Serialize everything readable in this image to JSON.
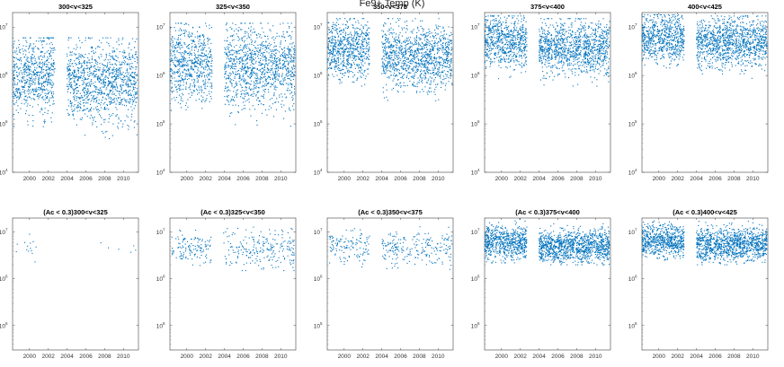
{
  "figure_title": "Fe9+ Temp (K)",
  "chart_data": [
    {
      "type": "scatter",
      "title": "300<v<325",
      "yscale": "log",
      "ylim": [
        10000,
        20000000
      ],
      "xlim": [
        1998.2,
        2011.6
      ],
      "x_ticks": [
        2000,
        2002,
        2004,
        2006,
        2008,
        2010
      ],
      "y_ticks": [
        4,
        5,
        6,
        7
      ],
      "marker_color": "#0072BD",
      "series": [
        {
          "density": "dense",
          "segments": [
            {
              "x": [
                1998.2,
                2002.7
              ],
              "y_center": 1000000,
              "y_spread": [
                60000,
                6000000
              ]
            },
            {
              "x": [
                2004.0,
                2011.5
              ],
              "y_center": 750000,
              "y_spread": [
                40000,
                6000000
              ]
            }
          ]
        }
      ]
    },
    {
      "type": "scatter",
      "title": "325<v<350",
      "yscale": "log",
      "ylim": [
        10000,
        20000000
      ],
      "xlim": [
        1998.2,
        2011.6
      ],
      "x_ticks": [
        2000,
        2002,
        2004,
        2006,
        2008,
        2010
      ],
      "y_ticks": [
        4,
        5,
        6,
        7
      ],
      "marker_color": "#0072BD",
      "series": [
        {
          "density": "dense",
          "segments": [
            {
              "x": [
                1998.2,
                2002.7
              ],
              "y_center": 1800000,
              "y_spread": [
                100000,
                12000000
              ]
            },
            {
              "x": [
                2004.0,
                2011.5
              ],
              "y_center": 1500000,
              "y_spread": [
                80000,
                12000000
              ]
            }
          ]
        }
      ]
    },
    {
      "type": "scatter",
      "title": "350<v<375",
      "yscale": "log",
      "ylim": [
        10000,
        20000000
      ],
      "xlim": [
        1998.2,
        2011.6
      ],
      "x_ticks": [
        2000,
        2002,
        2004,
        2006,
        2008,
        2010
      ],
      "y_ticks": [
        4,
        5,
        6,
        7
      ],
      "marker_color": "#0072BD",
      "series": [
        {
          "density": "dense",
          "segments": [
            {
              "x": [
                1998.2,
                2002.7
              ],
              "y_center": 3500000,
              "y_spread": [
                400000,
                15000000
              ]
            },
            {
              "x": [
                2004.0,
                2011.5
              ],
              "y_center": 2500000,
              "y_spread": [
                300000,
                15000000
              ]
            }
          ]
        }
      ]
    },
    {
      "type": "scatter",
      "title": "375<v<400",
      "yscale": "log",
      "ylim": [
        10000,
        20000000
      ],
      "xlim": [
        1998.2,
        2011.6
      ],
      "x_ticks": [
        2000,
        2002,
        2004,
        2006,
        2008,
        2010
      ],
      "y_ticks": [
        4,
        5,
        6,
        7
      ],
      "marker_color": "#0072BD",
      "series": [
        {
          "density": "dense",
          "segments": [
            {
              "x": [
                1998.2,
                2002.7
              ],
              "y_center": 5000000,
              "y_spread": [
                700000,
                17000000
              ]
            },
            {
              "x": [
                2004.0,
                2011.5
              ],
              "y_center": 3800000,
              "y_spread": [
                600000,
                15000000
              ]
            }
          ]
        }
      ]
    },
    {
      "type": "scatter",
      "title": "400<v<425",
      "yscale": "log",
      "ylim": [
        10000,
        20000000
      ],
      "xlim": [
        1998.2,
        2011.6
      ],
      "x_ticks": [
        2000,
        2002,
        2004,
        2006,
        2008,
        2010
      ],
      "y_ticks": [
        4,
        5,
        6,
        7
      ],
      "marker_color": "#0072BD",
      "series": [
        {
          "density": "dense",
          "segments": [
            {
              "x": [
                1998.2,
                2002.7
              ],
              "y_center": 6000000,
              "y_spread": [
                1000000,
                18000000
              ]
            },
            {
              "x": [
                2004.0,
                2011.5
              ],
              "y_center": 5000000,
              "y_spread": [
                800000,
                17000000
              ]
            }
          ]
        }
      ]
    },
    {
      "type": "scatter",
      "title": "(Ac < 0.3)300<v<325",
      "yscale": "log",
      "ylim": [
        30000,
        20000000
      ],
      "xlim": [
        1998.2,
        2011.6
      ],
      "x_ticks": [
        2000,
        2002,
        2004,
        2006,
        2008,
        2010
      ],
      "y_ticks": [
        5,
        6,
        7
      ],
      "marker_color": "#0072BD",
      "series": [
        {
          "density": "sparse",
          "points": [
            [
              1998.6,
              3800000
            ],
            [
              1998.7,
              5500000
            ],
            [
              1999.5,
              6000000
            ],
            [
              1999.7,
              4200000
            ],
            [
              1999.8,
              5000000
            ],
            [
              1999.9,
              3900000
            ],
            [
              2000.0,
              9000000
            ],
            [
              2000.1,
              5800000
            ],
            [
              2000.1,
              4500000
            ],
            [
              2000.2,
              4000000
            ],
            [
              2000.3,
              3500000
            ],
            [
              2000.4,
              6200000
            ],
            [
              2000.6,
              2300000
            ],
            [
              2000.7,
              4800000
            ],
            [
              2007.6,
              5900000
            ],
            [
              2008.4,
              4600000
            ],
            [
              2009.5,
              4300000
            ],
            [
              2010.8,
              3700000
            ],
            [
              2011.1,
              5100000
            ],
            [
              2011.3,
              4100000
            ]
          ]
        }
      ]
    },
    {
      "type": "scatter",
      "title": "(Ac < 0.3)325<v<350",
      "yscale": "log",
      "ylim": [
        30000,
        20000000
      ],
      "xlim": [
        1998.2,
        2011.6
      ],
      "x_ticks": [
        2000,
        2002,
        2004,
        2006,
        2008,
        2010
      ],
      "y_ticks": [
        5,
        6,
        7
      ],
      "marker_color": "#0072BD",
      "series": [
        {
          "density": "medium",
          "segments": [
            {
              "x": [
                1998.4,
                2002.6
              ],
              "y_center": 4500000,
              "y_spread": [
                1500000,
                11000000
              ]
            },
            {
              "x": [
                2003.9,
                2011.5
              ],
              "y_center": 4200000,
              "y_spread": [
                1500000,
                18000000
              ]
            }
          ]
        }
      ]
    },
    {
      "type": "scatter",
      "title": "(Ac < 0.3)350<v<375",
      "yscale": "log",
      "ylim": [
        30000,
        20000000
      ],
      "xlim": [
        1998.2,
        2011.6
      ],
      "x_ticks": [
        2000,
        2002,
        2004,
        2006,
        2008,
        2010
      ],
      "y_ticks": [
        5,
        6,
        7
      ],
      "marker_color": "#0072BD",
      "series": [
        {
          "density": "medium",
          "segments": [
            {
              "x": [
                1998.4,
                2002.7
              ],
              "y_center": 5000000,
              "y_spread": [
                1800000,
                17000000
              ]
            },
            {
              "x": [
                2004.0,
                2011.5
              ],
              "y_center": 4500000,
              "y_spread": [
                1500000,
                15000000
              ]
            }
          ]
        }
      ]
    },
    {
      "type": "scatter",
      "title": "(Ac < 0.3)375<v<400",
      "yscale": "log",
      "ylim": [
        30000,
        20000000
      ],
      "xlim": [
        1998.2,
        2011.6
      ],
      "x_ticks": [
        2000,
        2002,
        2004,
        2006,
        2008,
        2010
      ],
      "y_ticks": [
        5,
        6,
        7
      ],
      "marker_color": "#0072BD",
      "series": [
        {
          "density": "dense",
          "segments": [
            {
              "x": [
                1998.2,
                2002.7
              ],
              "y_center": 6000000,
              "y_spread": [
                2200000,
                19000000
              ]
            },
            {
              "x": [
                2004.0,
                2011.5
              ],
              "y_center": 5000000,
              "y_spread": [
                2000000,
                17000000
              ]
            }
          ]
        }
      ]
    },
    {
      "type": "scatter",
      "title": "(Ac < 0.3)400<v<425",
      "yscale": "log",
      "ylim": [
        30000,
        20000000
      ],
      "xlim": [
        1998.2,
        2011.6
      ],
      "x_ticks": [
        2000,
        2002,
        2004,
        2006,
        2008,
        2010
      ],
      "y_ticks": [
        5,
        6,
        7
      ],
      "marker_color": "#0072BD",
      "series": [
        {
          "density": "dense",
          "segments": [
            {
              "x": [
                1998.2,
                2002.7
              ],
              "y_center": 6500000,
              "y_spread": [
                2500000,
                19000000
              ]
            },
            {
              "x": [
                2004.0,
                2011.5
              ],
              "y_center": 5500000,
              "y_spread": [
                2000000,
                17000000
              ]
            }
          ]
        }
      ]
    }
  ]
}
